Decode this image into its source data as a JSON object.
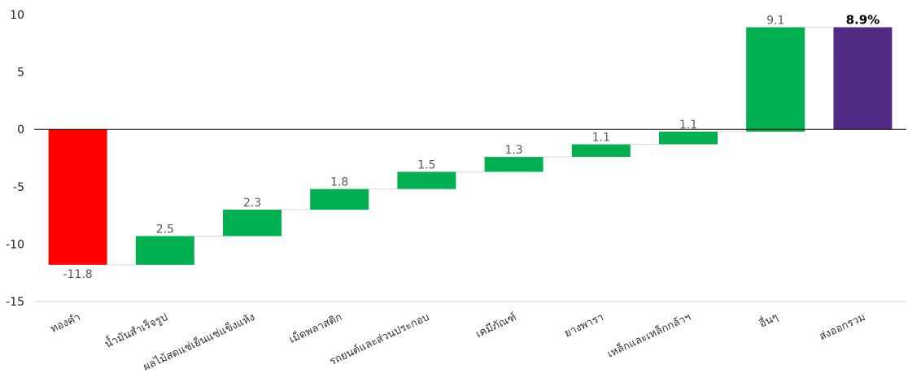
{
  "chart_data": {
    "type": "bar",
    "subtype": "waterfall",
    "title": "",
    "xlabel": "",
    "ylabel": "",
    "ylim": [
      -15,
      10
    ],
    "yticks": [
      10,
      5,
      0,
      -5,
      -10,
      -15
    ],
    "categories": [
      "ทองคำ",
      "น้ำมันสำเร็จรูป",
      "ผลไม้สดแช่เย็นแช่แข็งแห้ง",
      "เม็ดพลาสติก",
      "รถยนต์และส่วนประกอบ",
      "เคมีภัณฑ์",
      "ยางพารา",
      "เหล็กและเหล็กกล้าฯ",
      "อื่นๆ",
      "ส่งออกรวม"
    ],
    "values": [
      -11.8,
      2.5,
      2.3,
      1.8,
      1.5,
      1.3,
      1.1,
      1.1,
      9.1,
      8.9
    ],
    "labels": [
      "-11.8",
      "2.5",
      "2.3",
      "1.8",
      "1.5",
      "1.3",
      "1.1",
      "1.1",
      "9.1",
      "8.9%"
    ],
    "bar_kind": [
      "delta",
      "delta",
      "delta",
      "delta",
      "delta",
      "delta",
      "delta",
      "delta",
      "delta",
      "total"
    ],
    "colors": {
      "negative": "#ff0000",
      "positive": "#00b050",
      "total": "#512a84",
      "axis": "#000000",
      "connector": "#d9d9d9"
    },
    "grid": false
  }
}
